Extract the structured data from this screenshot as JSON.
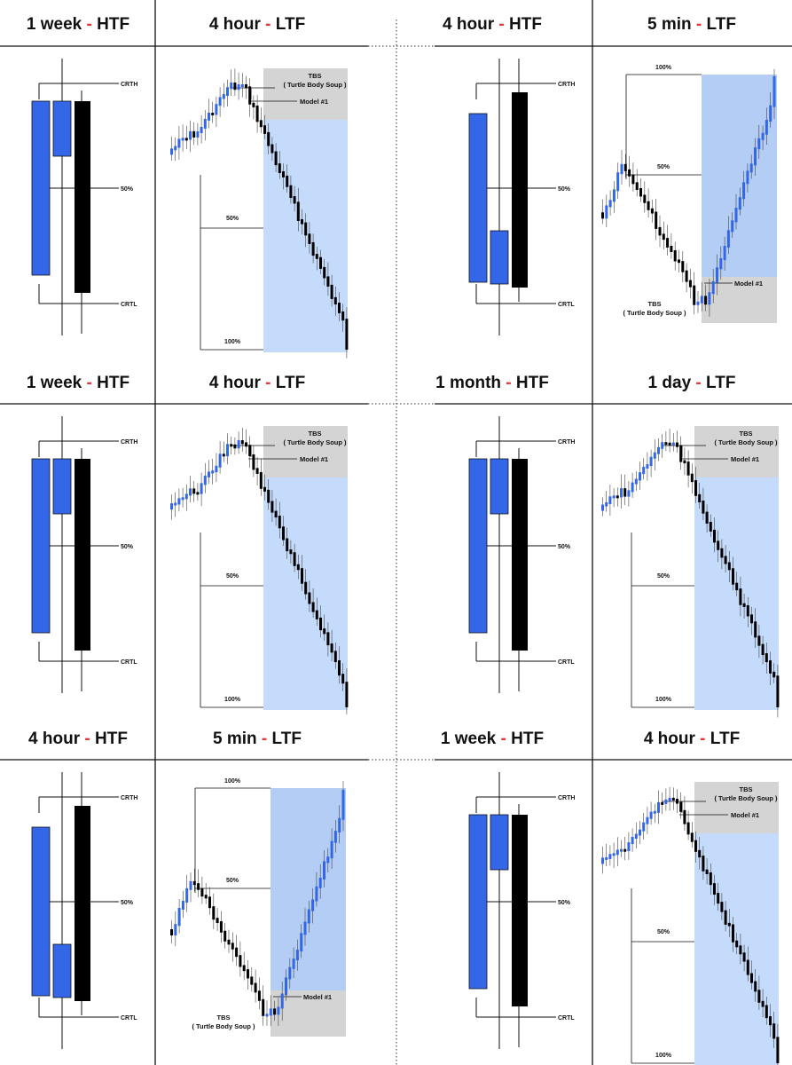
{
  "colors": {
    "bull": "#3367e8",
    "bear": "#000000",
    "zone_blue": "#c5dbfc",
    "zone_blue_dark": "#b3cdf5",
    "zone_grey": "#d4d4d4",
    "dash": "#e53935"
  },
  "labels": {
    "crth": "CRTH",
    "crtl": "CRTL",
    "mid": "50%",
    "full": "100%",
    "tbs": "TBS",
    "tbs_full": "( Turtle Body Soup )",
    "model": "Model #1"
  },
  "panels": [
    {
      "htf": {
        "tf": "1 week",
        "tag": "HTF"
      },
      "ltf": {
        "tf": "4 hour",
        "tag": "LTF"
      },
      "pattern": "bear"
    },
    {
      "htf": {
        "tf": "4 hour",
        "tag": "HTF"
      },
      "ltf": {
        "tf": "5 min",
        "tag": "LTF"
      },
      "pattern": "bull"
    },
    {
      "htf": {
        "tf": "1 week",
        "tag": "HTF"
      },
      "ltf": {
        "tf": "4 hour",
        "tag": "LTF"
      },
      "pattern": "bear"
    },
    {
      "htf": {
        "tf": "1 month",
        "tag": "HTF"
      },
      "ltf": {
        "tf": "1 day",
        "tag": "LTF"
      },
      "pattern": "bear"
    },
    {
      "htf": {
        "tf": "4 hour",
        "tag": "HTF"
      },
      "ltf": {
        "tf": "5 min",
        "tag": "LTF"
      },
      "pattern": "bull"
    },
    {
      "htf": {
        "tf": "1 week",
        "tag": "HTF"
      },
      "ltf": {
        "tf": "4 hour",
        "tag": "LTF"
      },
      "pattern": "bear"
    }
  ]
}
